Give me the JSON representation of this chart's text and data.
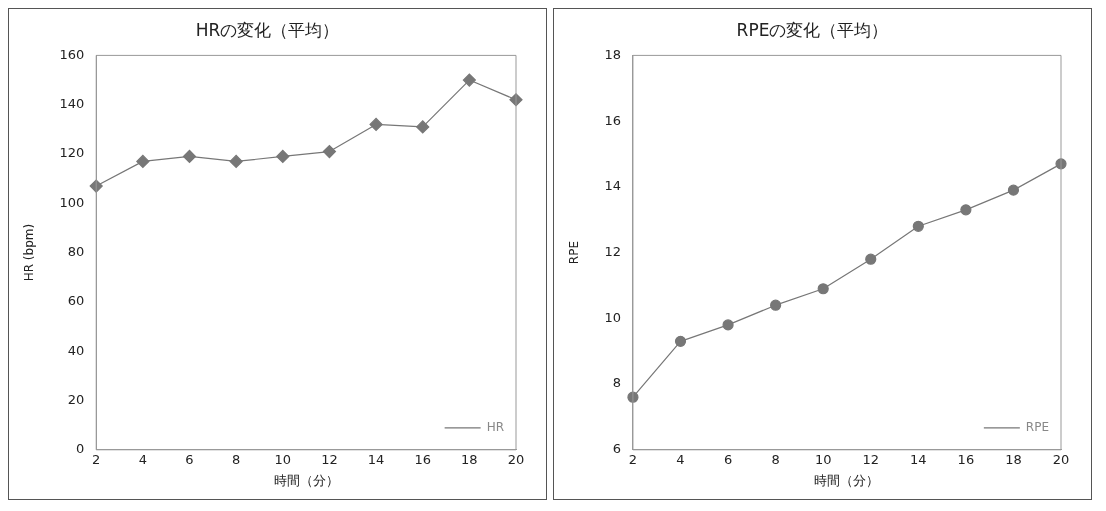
{
  "chart_data": [
    {
      "type": "line",
      "title": "HRの変化（平均）",
      "xlabel": "時間（分）",
      "ylabel": "HR (bpm)",
      "categories": [
        "2",
        "4",
        "6",
        "8",
        "10",
        "12",
        "14",
        "16",
        "18",
        "20"
      ],
      "series": [
        {
          "name": "HR",
          "color": "#777777",
          "values": [
            107,
            117,
            119,
            117,
            119,
            121,
            132,
            131,
            150,
            142
          ]
        }
      ],
      "ylim": [
        0,
        160
      ],
      "yticks": [
        0,
        20,
        40,
        60,
        80,
        100,
        120,
        140,
        160
      ],
      "grid": false,
      "legend": "bottom right",
      "marker": "diamond",
      "line_style": "solid"
    },
    {
      "type": "line",
      "title": "RPEの変化（平均）",
      "xlabel": "時間（分）",
      "ylabel": "RPE",
      "categories": [
        "2",
        "4",
        "6",
        "8",
        "10",
        "12",
        "14",
        "16",
        "18",
        "20"
      ],
      "series": [
        {
          "name": "RPE",
          "color": "#777777",
          "values": [
            7.6,
            9.3,
            9.8,
            10.4,
            10.9,
            11.8,
            12.8,
            13.3,
            13.9,
            14.7
          ]
        }
      ],
      "ylim": [
        6,
        18
      ],
      "yticks": [
        6,
        8,
        10,
        12,
        14,
        16,
        18
      ],
      "grid": false,
      "legend": "bottom right",
      "marker": "circle",
      "line_style": "solid"
    }
  ]
}
